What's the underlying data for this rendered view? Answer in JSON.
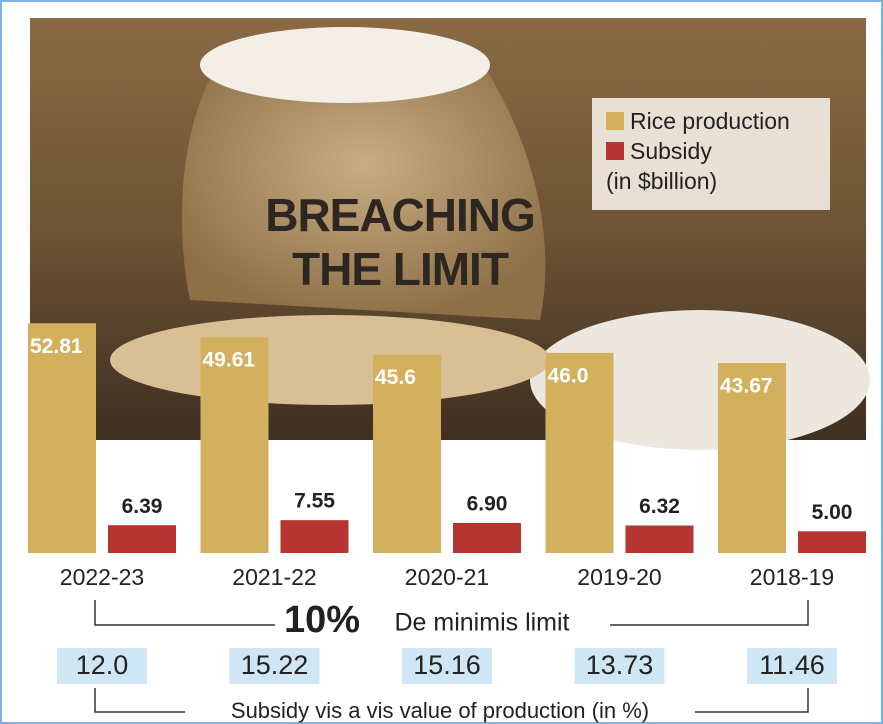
{
  "chart_data": {
    "type": "bar",
    "title": "BREACHING THE LIMIT",
    "unit": "(in $billion)",
    "categories": [
      "2022-23",
      "2021-22",
      "2020-21",
      "2019-20",
      "2018-19"
    ],
    "series": [
      {
        "name": "Rice production",
        "color": "#d3b05d",
        "values": [
          52.81,
          49.61,
          45.6,
          46.0,
          43.67
        ],
        "value_labels": [
          "52.81",
          "49.61",
          "45.6",
          "46.0",
          "43.67"
        ]
      },
      {
        "name": "Subsidy",
        "color": "#b73530",
        "values": [
          6.39,
          7.55,
          6.9,
          6.32,
          5.0
        ],
        "value_labels": [
          "6.39",
          "7.55",
          "6.90",
          "6.32",
          "5.00"
        ]
      }
    ],
    "ylim": [
      0,
      60
    ],
    "limit_value": "10%",
    "limit_text": "De minimis limit",
    "subsidy_share": {
      "label": "Subsidy vis a vis value of production (in %)",
      "values": [
        12.0,
        15.22,
        15.16,
        13.73,
        11.46
      ],
      "value_labels": [
        "12.0",
        "15.22",
        "15.16",
        "13.73",
        "11.46"
      ]
    }
  }
}
